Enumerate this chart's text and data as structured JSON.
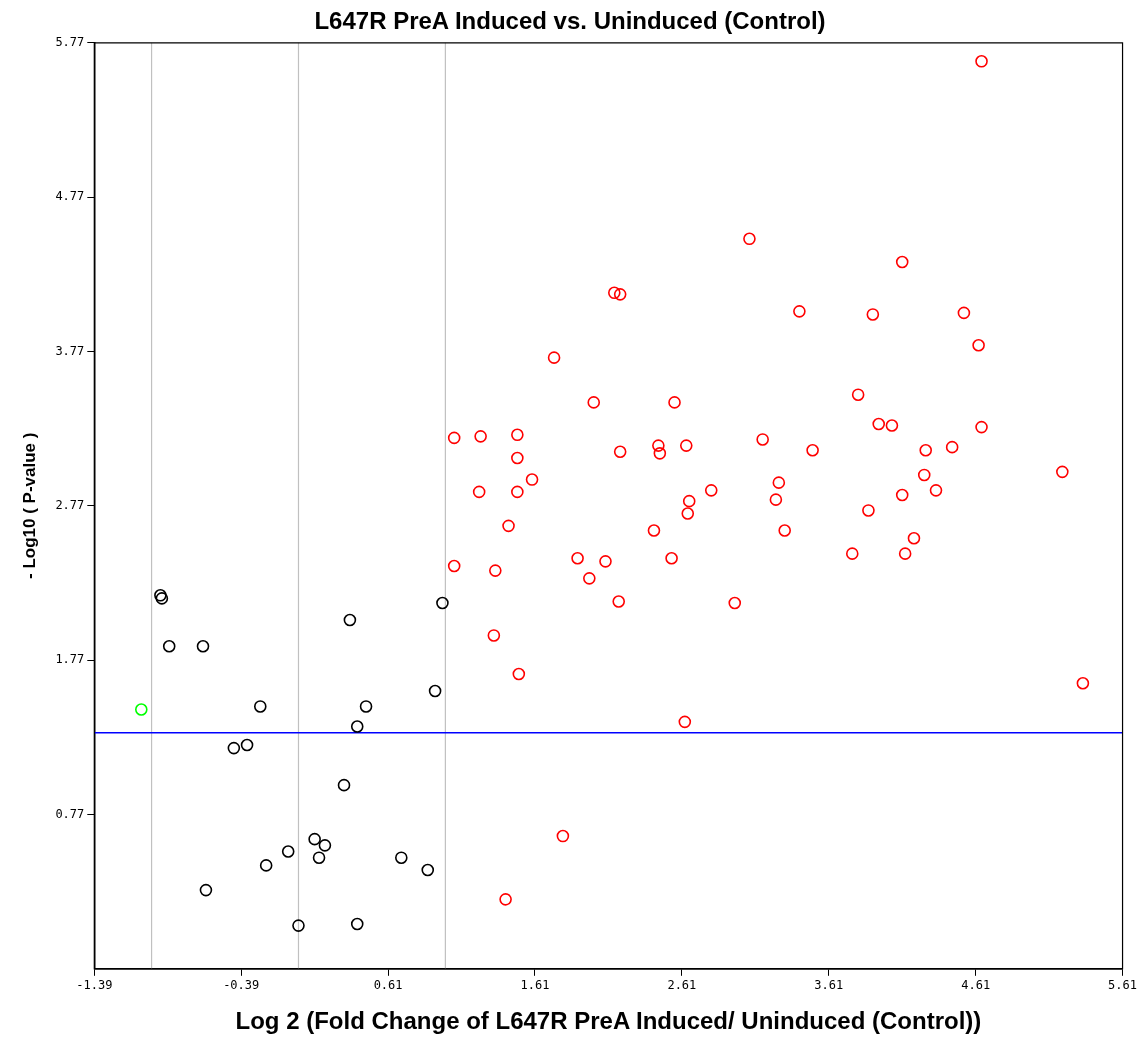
{
  "chart_data": {
    "type": "scatter",
    "title": "L647R PreA Induced vs. Uninduced (Control)",
    "xlabel": "Log 2 (Fold Change of L647R PreA Induced/ Uninduced (Control))",
    "ylabel": "- Log10 ( P-value )",
    "xlim": [
      -1.39,
      5.61
    ],
    "xticks": [
      -1.39,
      -0.39,
      0.61,
      1.61,
      2.61,
      3.61,
      4.61,
      5.61
    ],
    "ylim": [
      -0.23,
      5.77
    ],
    "yticks": [
      0.77,
      1.77,
      2.77,
      3.77,
      4.77,
      5.77
    ],
    "grid": false,
    "legend": false,
    "marker": "circle",
    "ref_lines": [
      {
        "axis": "x",
        "value": -1,
        "color": "#c0c0c0"
      },
      {
        "axis": "x",
        "value": 0,
        "color": "#c0c0c0"
      },
      {
        "axis": "x",
        "value": 1,
        "color": "#c0c0c0"
      },
      {
        "axis": "y",
        "value": 1.3,
        "color": "#0000ff"
      }
    ],
    "series": [
      {
        "type": "scatter",
        "color": "#000000",
        "x": [
          -0.94,
          -0.93,
          -0.88,
          -0.65,
          -0.26,
          -0.44,
          -0.35,
          -0.63,
          -0.22,
          -0.07,
          0.11,
          0.14,
          0.18,
          0.0,
          0.31,
          0.35,
          0.4,
          0.46,
          0.4,
          0.7,
          0.88,
          0.93,
          0.98
        ],
        "values": [
          2.19,
          2.17,
          1.86,
          1.86,
          1.47,
          1.2,
          1.22,
          0.28,
          0.44,
          0.53,
          0.61,
          0.49,
          0.57,
          0.05,
          0.96,
          2.03,
          1.34,
          1.47,
          0.06,
          0.49,
          0.41,
          1.57,
          2.14
        ]
      },
      {
        "type": "scatter",
        "color": "#00ff00",
        "x": [
          -1.07
        ],
        "values": [
          1.45
        ]
      },
      {
        "type": "scatter",
        "color": "#ff0000",
        "x": [
          4.65,
          3.07,
          4.11,
          2.15,
          2.19,
          3.41,
          3.91,
          4.53,
          1.74,
          4.63,
          3.81,
          2.01,
          2.56,
          3.95,
          4.04,
          4.65,
          1.06,
          1.24,
          1.49,
          3.16,
          2.45,
          2.64,
          2.19,
          2.46,
          1.49,
          3.5,
          4.27,
          4.45,
          1.59,
          3.27,
          4.26,
          5.2,
          1.23,
          1.49,
          2.81,
          2.66,
          3.25,
          4.11,
          4.34,
          2.65,
          3.88,
          1.43,
          2.42,
          3.31,
          4.19,
          1.9,
          2.09,
          2.54,
          3.77,
          4.13,
          1.06,
          1.34,
          1.98,
          2.18,
          2.97,
          1.33,
          1.5,
          5.34,
          2.63,
          1.8,
          1.41
        ],
        "values": [
          5.65,
          4.5,
          4.35,
          4.15,
          4.14,
          4.03,
          4.01,
          4.02,
          3.73,
          3.81,
          3.49,
          3.44,
          3.44,
          3.3,
          3.29,
          3.28,
          3.21,
          3.22,
          3.23,
          3.2,
          3.16,
          3.16,
          3.12,
          3.11,
          3.08,
          3.13,
          3.13,
          3.15,
          2.94,
          2.92,
          2.97,
          2.99,
          2.86,
          2.86,
          2.87,
          2.8,
          2.81,
          2.84,
          2.87,
          2.72,
          2.74,
          2.64,
          2.61,
          2.61,
          2.56,
          2.43,
          2.41,
          2.43,
          2.46,
          2.46,
          2.38,
          2.35,
          2.3,
          2.15,
          2.14,
          1.93,
          1.68,
          1.62,
          1.37,
          0.63,
          0.22
        ]
      }
    ]
  }
}
